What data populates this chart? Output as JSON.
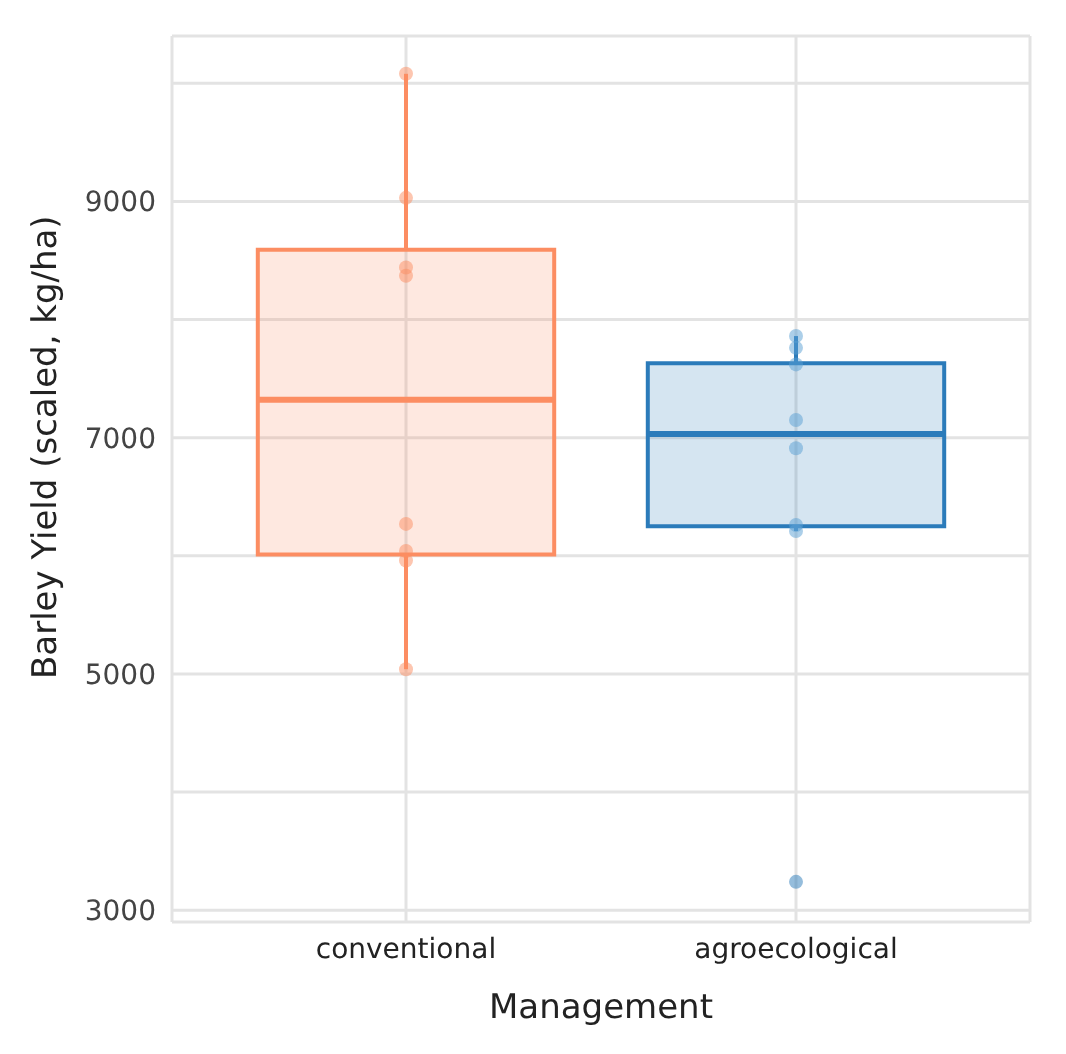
{
  "chart_data": {
    "type": "box",
    "xlabel": "Management",
    "ylabel": "Barley Yield (scaled, kg/ha)",
    "categories": [
      "conventional",
      "agroecological"
    ],
    "colors": [
      "#fc8d62",
      "#2b7bba"
    ],
    "boxes": [
      {
        "low": 5040,
        "q1": 6010,
        "median": 7320,
        "q3": 8590,
        "high": 10080
      },
      {
        "low": 6210,
        "q1": 6250,
        "median": 7030,
        "q3": 7630,
        "high": 7860,
        "outliers": [
          3240
        ]
      }
    ],
    "series": [
      {
        "type": "scatter",
        "color": "#fc8d62",
        "x": [
          "conventional",
          "conventional",
          "conventional",
          "conventional",
          "conventional",
          "conventional",
          "conventional",
          "conventional"
        ],
        "values": [
          10080,
          9030,
          8440,
          8370,
          6270,
          6040,
          5960,
          5040
        ]
      },
      {
        "type": "scatter",
        "color": "#5a9fd4",
        "x": [
          "agroecological",
          "agroecological",
          "agroecological",
          "agroecological",
          "agroecological",
          "agroecological",
          "agroecological"
        ],
        "values": [
          7860,
          7760,
          7620,
          7150,
          6910,
          6260,
          6210
        ]
      }
    ],
    "ylim": [
      2900,
      10400
    ],
    "yticks": [
      3000,
      {
        "value": 4000,
        "label": null
      },
      5000,
      {
        "value": 6000,
        "label": null
      },
      7000,
      {
        "value": 8000,
        "label": null
      },
      9000,
      {
        "value": 10000,
        "label": null
      }
    ],
    "grid": true,
    "legend": false
  }
}
